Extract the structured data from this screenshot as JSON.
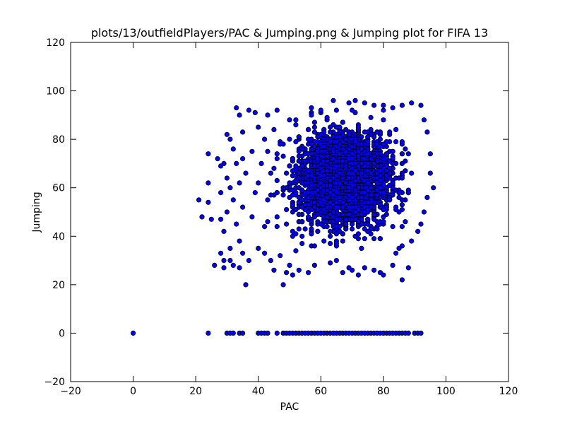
{
  "chart_data": {
    "type": "scatter",
    "title": "plots/13/outfieldPlayers/PAC & Jumping.png & Jumping plot for FIFA 13",
    "xlabel": "PAC",
    "ylabel": "Jumping",
    "xlim": [
      -20,
      120
    ],
    "ylim": [
      -20,
      120
    ],
    "xticks": [
      -20,
      0,
      20,
      40,
      60,
      80,
      100,
      120
    ],
    "yticks": [
      -20,
      0,
      20,
      40,
      60,
      80,
      100,
      120
    ],
    "grid": false,
    "legend": "none",
    "marker_color": "#0000ff",
    "marker_edge_color": "#000000",
    "series": [
      {
        "values": [
          [
            0,
            0
          ],
          [
            24,
            0
          ],
          [
            30,
            0
          ],
          [
            31,
            0
          ],
          [
            32,
            0
          ],
          [
            34,
            0
          ],
          [
            35,
            0
          ],
          [
            40,
            0
          ],
          [
            41,
            0
          ],
          [
            42,
            0
          ],
          [
            43,
            0
          ],
          [
            46,
            0
          ],
          [
            48,
            0
          ],
          [
            49,
            0
          ],
          [
            50,
            0
          ],
          [
            51,
            0
          ],
          [
            52,
            0
          ],
          [
            53,
            0
          ],
          [
            54,
            0
          ],
          [
            55,
            0
          ],
          [
            56,
            0
          ],
          [
            57,
            0
          ],
          [
            58,
            0
          ],
          [
            59,
            0
          ],
          [
            60,
            0
          ],
          [
            61,
            0
          ],
          [
            62,
            0
          ],
          [
            63,
            0
          ],
          [
            64,
            0
          ],
          [
            65,
            0
          ],
          [
            66,
            0
          ],
          [
            67,
            0
          ],
          [
            68,
            0
          ],
          [
            69,
            0
          ],
          [
            70,
            0
          ],
          [
            71,
            0
          ],
          [
            72,
            0
          ],
          [
            73,
            0
          ],
          [
            74,
            0
          ],
          [
            75,
            0
          ],
          [
            76,
            0
          ],
          [
            77,
            0
          ],
          [
            78,
            0
          ],
          [
            79,
            0
          ],
          [
            80,
            0
          ],
          [
            81,
            0
          ],
          [
            82,
            0
          ],
          [
            83,
            0
          ],
          [
            84,
            0
          ],
          [
            85,
            0
          ],
          [
            86,
            0
          ],
          [
            87,
            0
          ],
          [
            88,
            0
          ],
          [
            90,
            0
          ],
          [
            91,
            0
          ],
          [
            92,
            0
          ],
          [
            21,
            55
          ],
          [
            22,
            48
          ],
          [
            24,
            74
          ],
          [
            24,
            62
          ],
          [
            24,
            54
          ],
          [
            25,
            47
          ],
          [
            26,
            28
          ],
          [
            27,
            72
          ],
          [
            28,
            69
          ],
          [
            28,
            58
          ],
          [
            28,
            47
          ],
          [
            28,
            33
          ],
          [
            29,
            70
          ],
          [
            29,
            42
          ],
          [
            29,
            30
          ],
          [
            29,
            27
          ],
          [
            30,
            82
          ],
          [
            30,
            64
          ],
          [
            30,
            50
          ],
          [
            31,
            80
          ],
          [
            31,
            60
          ],
          [
            31,
            35
          ],
          [
            31,
            30
          ],
          [
            32,
            76
          ],
          [
            32,
            55
          ],
          [
            32,
            28
          ],
          [
            33,
            93
          ],
          [
            33,
            70
          ],
          [
            33,
            45
          ],
          [
            34,
            90
          ],
          [
            34,
            62
          ],
          [
            34,
            38
          ],
          [
            34,
            27
          ],
          [
            35,
            83
          ],
          [
            35,
            72
          ],
          [
            35,
            52
          ],
          [
            35,
            33
          ],
          [
            36,
            20
          ],
          [
            36,
            66
          ],
          [
            37,
            92
          ],
          [
            37,
            30
          ],
          [
            38,
            75
          ],
          [
            38,
            48
          ],
          [
            39,
            91
          ],
          [
            39,
            58
          ],
          [
            40,
            85
          ],
          [
            40,
            62
          ],
          [
            40,
            35
          ],
          [
            41,
            70
          ],
          [
            42,
            80
          ],
          [
            42,
            44
          ],
          [
            42,
            33
          ],
          [
            43,
            90
          ],
          [
            43,
            55
          ],
          [
            44,
            30
          ],
          [
            44,
            66
          ],
          [
            45,
            84
          ],
          [
            45,
            26
          ],
          [
            46,
            92
          ],
          [
            46,
            48
          ],
          [
            47,
            78
          ],
          [
            47,
            32
          ],
          [
            48,
            20
          ],
          [
            48,
            60
          ],
          [
            49,
            25
          ],
          [
            50,
            88
          ],
          [
            50,
            28
          ],
          [
            51,
            24
          ],
          [
            53,
            26
          ],
          [
            56,
            25
          ],
          [
            58,
            28
          ],
          [
            63,
            29
          ],
          [
            65,
            30
          ],
          [
            67,
            25
          ],
          [
            69,
            27
          ],
          [
            70,
            26
          ],
          [
            72,
            24
          ],
          [
            74,
            27
          ],
          [
            77,
            26
          ],
          [
            79,
            25
          ],
          [
            80,
            24
          ],
          [
            83,
            28
          ],
          [
            86,
            22
          ],
          [
            88,
            27
          ],
          [
            64,
            96
          ],
          [
            69,
            95
          ],
          [
            71,
            96
          ],
          [
            74,
            95
          ],
          [
            77,
            94
          ],
          [
            80,
            94
          ],
          [
            83,
            93
          ],
          [
            86,
            94
          ],
          [
            89,
            95
          ],
          [
            92,
            94
          ],
          [
            57,
            93
          ],
          [
            60,
            92
          ],
          [
            93,
            88
          ],
          [
            94,
            83
          ],
          [
            95,
            74
          ],
          [
            95,
            66
          ],
          [
            96,
            60
          ],
          [
            94,
            56
          ],
          [
            93,
            50
          ],
          [
            92,
            45
          ],
          [
            91,
            42
          ],
          [
            89,
            38
          ],
          [
            86,
            36
          ],
          [
            84,
            33
          ]
        ]
      }
    ],
    "dense_clusters": [
      {
        "x_range": [
          50,
          92
        ],
        "y_range": [
          35,
          92
        ],
        "x_mean": 68,
        "y_mean": 64,
        "x_std": 9,
        "y_std": 12
      },
      {
        "x_range": [
          38,
          92
        ],
        "y_range": [
          30,
          92
        ],
        "x_mean": 66,
        "y_mean": 62,
        "x_std": 13,
        "y_std": 16
      }
    ]
  }
}
